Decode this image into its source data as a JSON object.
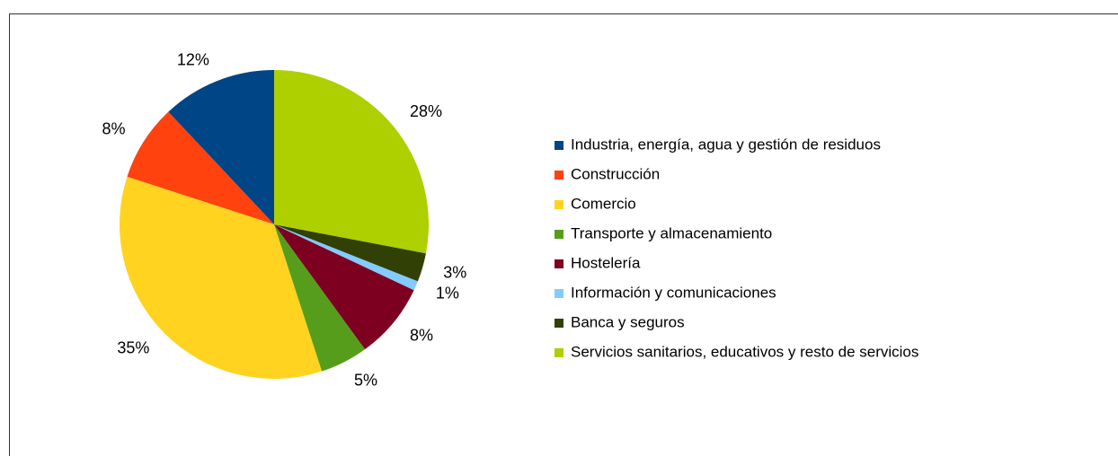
{
  "chart_data": {
    "type": "pie",
    "categories": [
      "Industria, energía, agua y gestión de residuos",
      "Construcción",
      "Comercio",
      "Transporte y almacenamiento",
      "Hostelería",
      "Información y comunicaciones",
      "Banca y seguros",
      "Servicios sanitarios, educativos y resto de servicios"
    ],
    "values": [
      12,
      8,
      35,
      5,
      8,
      1,
      3,
      28
    ],
    "value_labels": [
      "12%",
      "8%",
      "35%",
      "5%",
      "8%",
      "1%",
      "3%",
      "28%"
    ],
    "colors": [
      "#004586",
      "#ff420e",
      "#ffd320",
      "#579d1c",
      "#7e0021",
      "#83caff",
      "#314004",
      "#aecf00"
    ],
    "direction": "counterclockwise",
    "legend": "right"
  }
}
